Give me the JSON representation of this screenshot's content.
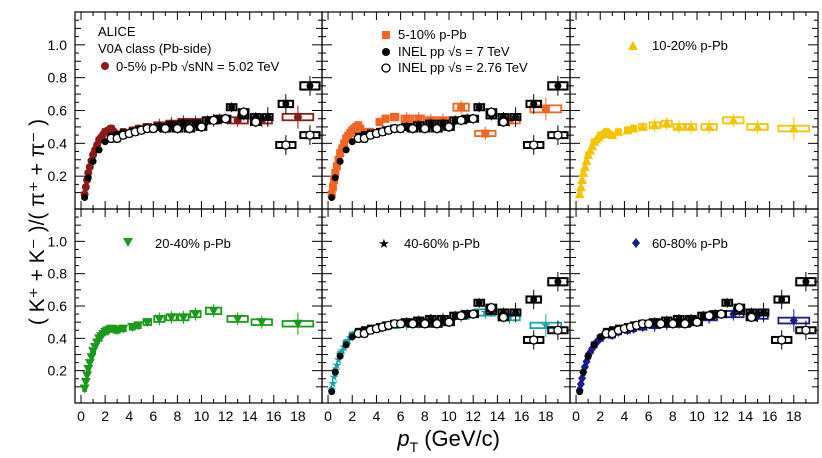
{
  "figure": {
    "ylabel": "( K⁺ + K⁻ )/( π⁺ + π⁻ )",
    "xlabel_main": "p",
    "xlabel_sub": "T",
    "xlabel_units": "(GeV/c)"
  },
  "legend_text": {
    "alice": "ALICE",
    "v0a": "V0A class (Pb-side)",
    "panel1": "0-5% p-Pb √sNN = 5.02 TeV",
    "panel2_a": "5-10% p-Pb",
    "panel2_b": "INEL pp √s = 7 TeV",
    "panel2_c": "INEL pp √s = 2.76 TeV",
    "panel3": "10-20% p-Pb",
    "panel4": "20-40% p-Pb",
    "panel5": "40-60% p-Pb",
    "panel6": "60-80% p-Pb"
  },
  "chart_data": {
    "type": "scatter",
    "title": "",
    "xlabel": "pT (GeV/c)",
    "ylabel": "(K+ + K-)/(π+ + π-)",
    "xlim": [
      -0.5,
      20
    ],
    "ylim": [
      0,
      1.2
    ],
    "x_ticks": [
      0,
      2,
      4,
      6,
      8,
      10,
      12,
      14,
      16,
      18
    ],
    "y_ticks": [
      0.2,
      0.4,
      0.6,
      0.8,
      1.0
    ],
    "panels": [
      {
        "name": "0-5% p-Pb",
        "color": "#8b1a1a",
        "marker": "circle",
        "x": [
          0.3,
          0.6,
          1.0,
          1.5,
          2.0,
          2.5,
          3.0,
          3.5,
          4.25,
          4.75,
          5.5,
          6.5,
          7.5,
          8.5,
          9.5,
          11.0,
          13.0,
          15.0,
          18.0
        ],
        "y": [
          0.09,
          0.22,
          0.33,
          0.42,
          0.47,
          0.49,
          0.45,
          0.47,
          0.48,
          0.49,
          0.5,
          0.51,
          0.52,
          0.53,
          0.53,
          0.54,
          0.54,
          0.54,
          0.56
        ]
      },
      {
        "name": "5-10% p-Pb",
        "color": "#f26522",
        "marker": "square",
        "x": [
          0.3,
          0.6,
          1.0,
          1.5,
          2.0,
          2.5,
          3.0,
          3.5,
          4.25,
          4.75,
          5.5,
          6.5,
          7.5,
          8.5,
          9.5,
          11.0,
          13.0,
          15.0,
          18.0
        ],
        "y": [
          0.09,
          0.22,
          0.34,
          0.43,
          0.48,
          0.51,
          0.45,
          0.47,
          0.53,
          0.55,
          0.56,
          0.55,
          0.55,
          0.54,
          0.54,
          0.62,
          0.46,
          0.54,
          0.61
        ]
      },
      {
        "name": "10-20% p-Pb",
        "color": "#f5c400",
        "marker": "triangle-up",
        "x": [
          0.3,
          0.6,
          1.0,
          1.5,
          2.0,
          2.5,
          3.0,
          3.5,
          4.25,
          4.75,
          5.5,
          6.5,
          7.5,
          8.5,
          9.5,
          11.0,
          13.0,
          15.0,
          18.0
        ],
        "y": [
          0.09,
          0.22,
          0.33,
          0.41,
          0.45,
          0.47,
          0.45,
          0.47,
          0.48,
          0.49,
          0.5,
          0.51,
          0.52,
          0.5,
          0.5,
          0.5,
          0.54,
          0.5,
          0.49
        ]
      },
      {
        "name": "20-40% p-Pb",
        "color": "#1a9a1a",
        "marker": "triangle-down",
        "x": [
          0.3,
          0.6,
          1.0,
          1.5,
          2.0,
          2.5,
          3.0,
          3.5,
          4.25,
          4.75,
          5.5,
          6.5,
          7.5,
          8.5,
          9.5,
          11.0,
          13.0,
          15.0,
          18.0
        ],
        "y": [
          0.09,
          0.21,
          0.32,
          0.4,
          0.44,
          0.46,
          0.45,
          0.46,
          0.47,
          0.48,
          0.5,
          0.52,
          0.53,
          0.53,
          0.55,
          0.57,
          0.52,
          0.5,
          0.49
        ]
      },
      {
        "name": "40-60% p-Pb",
        "color": "#17a2a8",
        "marker": "star",
        "x": [
          0.3,
          0.6,
          1.0,
          1.5,
          2.0,
          2.5,
          3.0,
          3.5,
          4.25,
          4.75,
          5.5,
          6.5,
          7.5,
          8.5,
          9.5,
          11.0,
          13.0,
          15.0,
          18.0
        ],
        "y": [
          0.08,
          0.2,
          0.3,
          0.37,
          0.42,
          0.44,
          0.43,
          0.45,
          0.46,
          0.47,
          0.48,
          0.49,
          0.5,
          0.51,
          0.52,
          0.54,
          0.56,
          0.53,
          0.48
        ]
      },
      {
        "name": "60-80% p-Pb",
        "color": "#1a1a8b",
        "marker": "diamond",
        "x": [
          0.3,
          0.6,
          1.0,
          1.5,
          2.0,
          2.5,
          3.0,
          3.5,
          4.25,
          4.75,
          5.5,
          6.5,
          7.5,
          8.5,
          9.5,
          11.0,
          13.0,
          15.0,
          18.0
        ],
        "y": [
          0.08,
          0.19,
          0.29,
          0.36,
          0.4,
          0.43,
          0.42,
          0.44,
          0.45,
          0.46,
          0.47,
          0.48,
          0.49,
          0.5,
          0.51,
          0.53,
          0.55,
          0.54,
          0.51
        ]
      }
    ],
    "reference": [
      {
        "name": "INEL pp √s = 7 TeV",
        "marker": "filled-circle",
        "x": [
          0.3,
          0.6,
          1.0,
          1.5,
          2.0,
          2.5,
          3.0,
          3.5,
          4.25,
          4.75,
          5.5,
          6.5,
          7.5,
          8.5,
          9.5,
          10.5,
          11.5,
          12.5,
          13.5,
          14.5,
          15.5,
          17.0,
          19.0
        ],
        "y": [
          0.07,
          0.19,
          0.29,
          0.36,
          0.41,
          0.44,
          0.45,
          0.46,
          0.47,
          0.48,
          0.49,
          0.5,
          0.51,
          0.52,
          0.52,
          0.54,
          0.55,
          0.62,
          0.57,
          0.56,
          0.56,
          0.64,
          0.75
        ]
      },
      {
        "name": "INEL pp √s = 2.76 TeV",
        "marker": "open-circle",
        "x": [
          2.5,
          3.0,
          3.5,
          4.0,
          4.5,
          5.0,
          5.5,
          6.0,
          7.0,
          8.0,
          9.0,
          10.0,
          11.0,
          12.0,
          13.5,
          14.5,
          17.0,
          19.0
        ],
        "y": [
          0.43,
          0.43,
          0.45,
          0.46,
          0.47,
          0.48,
          0.49,
          0.49,
          0.49,
          0.49,
          0.49,
          0.5,
          0.54,
          0.55,
          0.59,
          0.53,
          0.39,
          0.45
        ]
      }
    ],
    "legend": [
      "ALICE",
      "V0A class (Pb-side)",
      "0-5% p-Pb √sNN = 5.02 TeV",
      "5-10% p-Pb",
      "INEL pp √s = 7 TeV",
      "INEL pp √s = 2.76 TeV",
      "10-20% p-Pb",
      "20-40% p-Pb",
      "40-60% p-Pb",
      "60-80% p-Pb"
    ]
  }
}
